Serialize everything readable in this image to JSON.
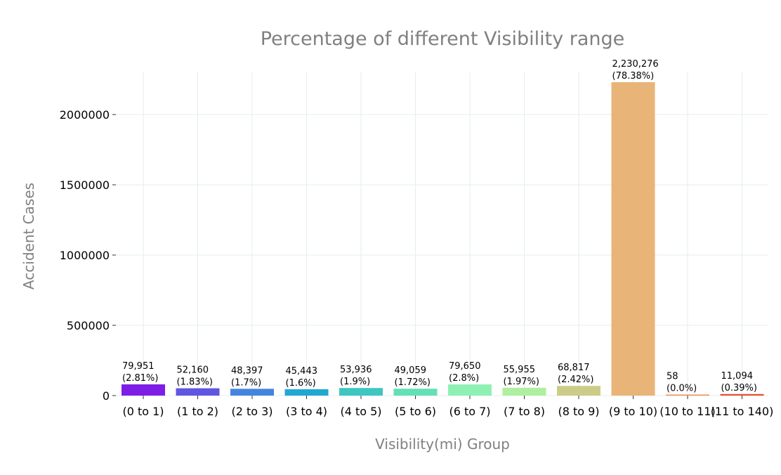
{
  "chart_data": {
    "type": "bar",
    "title": "Percentage of different Visibility range",
    "xlabel": "Visibility(mi) Group",
    "ylabel": "Accident Cases",
    "ylim": [
      0,
      2300000
    ],
    "yticks": [
      0,
      500000,
      1000000,
      1500000,
      2000000
    ],
    "ytick_labels": [
      "0",
      "500000",
      "1000000",
      "1500000",
      "2000000"
    ],
    "categories": [
      "(0 to 1)",
      "(1 to 2)",
      "(2 to 3)",
      "(3 to 4)",
      "(4 to 5)",
      "(5 to 6)",
      "(6 to 7)",
      "(7 to 8)",
      "(8 to 9)",
      "(9 to 10)",
      "(10 to 11)",
      "(11 to 140)"
    ],
    "values": [
      79951,
      52160,
      48397,
      45443,
      53936,
      49059,
      79650,
      55955,
      68817,
      2230276,
      58,
      11094
    ],
    "value_labels": [
      "79,951",
      "52,160",
      "48,397",
      "45,443",
      "53,936",
      "49,059",
      "79,650",
      "55,955",
      "68,817",
      "2,230,276",
      "58",
      "11,094"
    ],
    "percent_labels": [
      "(2.81%)",
      "(1.83%)",
      "(1.7%)",
      "(1.6%)",
      "(1.9%)",
      "(1.72%)",
      "(2.8%)",
      "(1.97%)",
      "(2.42%)",
      "(78.38%)",
      "(0.0%)",
      "(0.39%)"
    ],
    "colors": [
      "#7e1de6",
      "#5f56e1",
      "#4484df",
      "#21a8d2",
      "#3ec6c0",
      "#63e0b6",
      "#8ef1b3",
      "#b0eea0",
      "#cbcc88",
      "#e9b477",
      "#f08a58",
      "#e74e31"
    ],
    "grid": true,
    "legend": "none"
  }
}
